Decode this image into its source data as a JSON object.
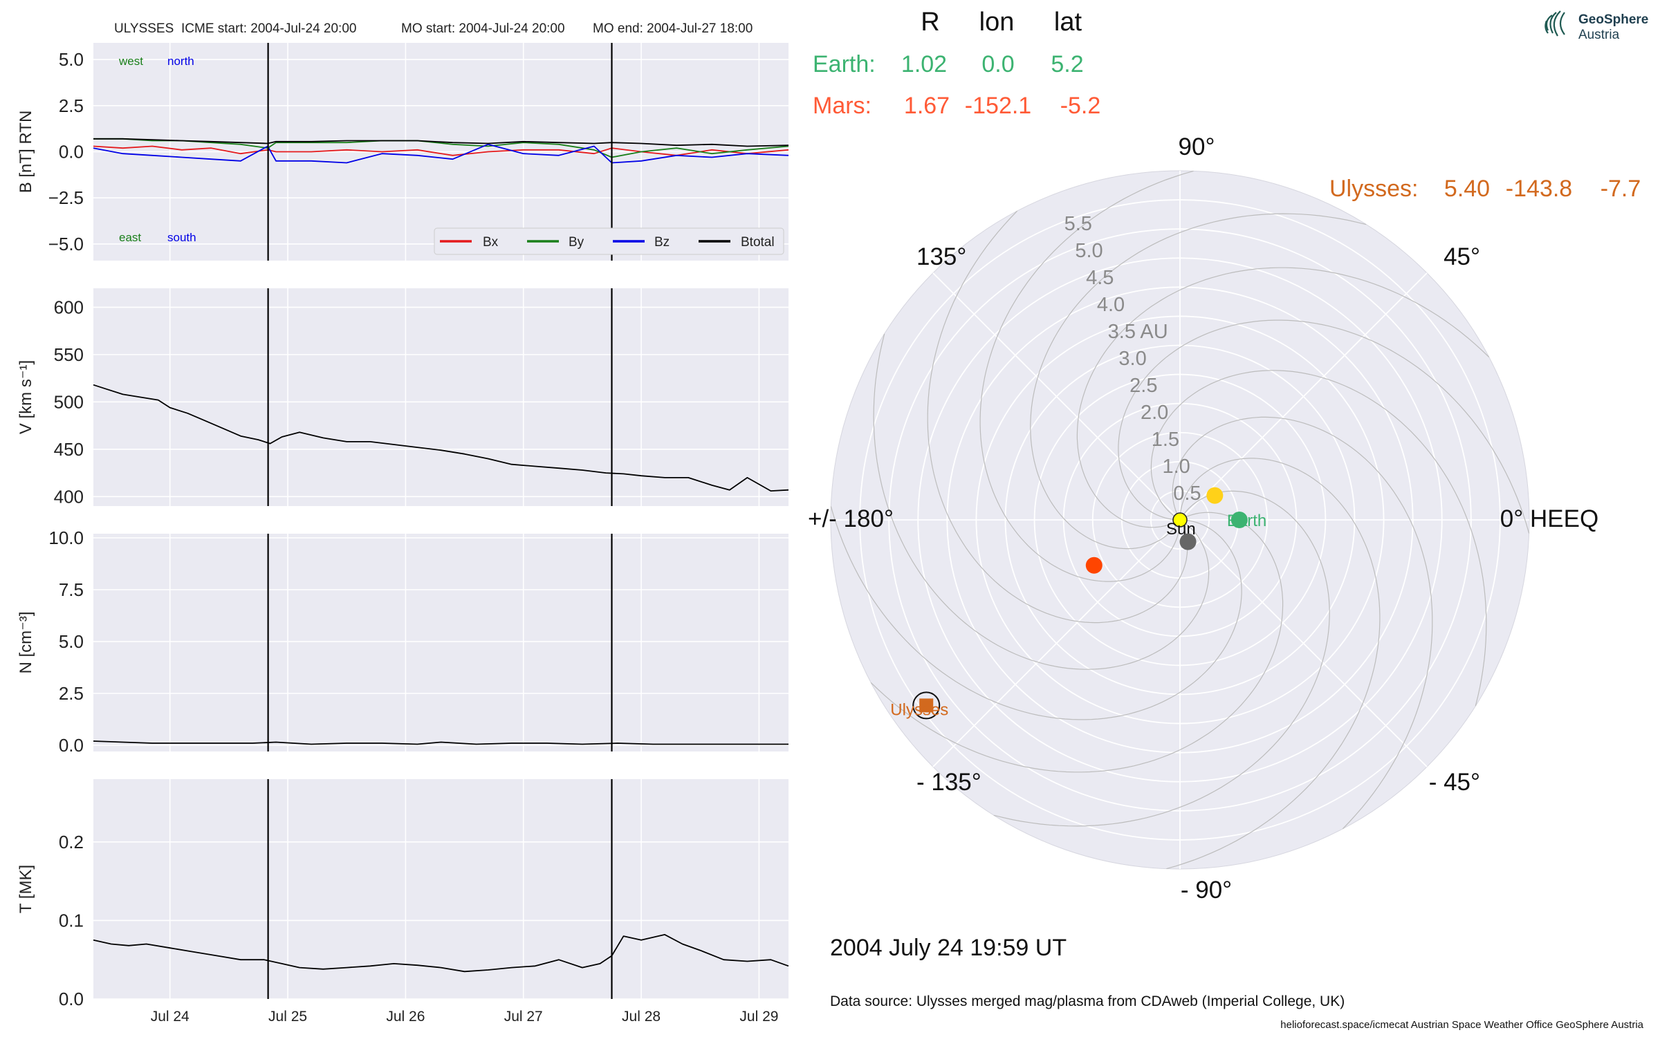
{
  "header": {
    "spacecraft": "ULYSSES",
    "icme_start": "ICME start: 2004-Jul-24 20:00",
    "mo_start": "MO start: 2004-Jul-24 20:00",
    "mo_end": "MO end: 2004-Jul-27 18:00"
  },
  "table": {
    "columns": [
      "R",
      "lon",
      "lat"
    ],
    "rows": [
      {
        "name": "Earth:",
        "R": "1.02",
        "lon": "0.0",
        "lat": "5.2",
        "color": "#3cb371"
      },
      {
        "name": "Mars:",
        "R": "1.67",
        "lon": "-152.1",
        "lat": "-5.2",
        "color": "#ff5a36"
      },
      {
        "name": "Ulysses:",
        "R": "5.40",
        "lon": "-143.8",
        "lat": "-7.7",
        "color": "#d2691e"
      }
    ]
  },
  "logo": {
    "line1": "GeoSphere",
    "line2": "Austria"
  },
  "date_label": "2004 July 24  19:59 UT",
  "source": "Data source: Ulysses merged mag/plasma from CDAweb (Imperial College, UK)",
  "footer": "helioforecast.space/icmecat   Austrian Space Weather Office   GeoSphere Austria",
  "colors": {
    "panel_bg": "#eaeaf2",
    "grid": "#ffffff",
    "bx": "#e41a1c",
    "by": "#1a7f1a",
    "bz": "#0000e6",
    "btot": "#000000",
    "earth": "#3cb371",
    "mars": "#ff4500",
    "venus": "#ffd119",
    "mercury": "#666666",
    "sun": "#ffff00",
    "ulysses": "#d2691e"
  },
  "chart_data": [
    {
      "type": "line",
      "panel": "B",
      "ylabel": "B [nT] RTN",
      "ylim": [
        -5.9,
        5.9
      ],
      "yticks": [
        5.0,
        2.5,
        0.0,
        -2.5,
        -5.0
      ],
      "ytick_labels": [
        "5.0",
        "2.5",
        "0.0",
        "−2.5",
        "−5.0"
      ],
      "xlim": [
        23.35,
        29.25
      ],
      "xticks": [
        24,
        25,
        26,
        27,
        28,
        29
      ],
      "xtick_labels": [
        "Jul 24",
        "Jul 25",
        "Jul 26",
        "Jul 27",
        "Jul 28",
        "Jul 29"
      ],
      "vlines": [
        24.833,
        27.75
      ],
      "annotations": {
        "west": "west",
        "north": "north",
        "east": "east",
        "south": "south"
      },
      "legend_position": "lower-right",
      "series": [
        {
          "name": "Bx",
          "color": "#e41a1c",
          "x": [
            23.35,
            23.6,
            23.85,
            24.1,
            24.35,
            24.6,
            24.83,
            24.9,
            25.2,
            25.5,
            25.8,
            26.1,
            26.4,
            26.7,
            27.0,
            27.3,
            27.6,
            27.75,
            28.0,
            28.3,
            28.6,
            28.9,
            29.25
          ],
          "y": [
            0.3,
            0.2,
            0.3,
            0.1,
            0.2,
            -0.1,
            0.1,
            0.0,
            0.0,
            0.1,
            0.0,
            0.1,
            -0.2,
            0.0,
            0.1,
            0.1,
            -0.1,
            0.2,
            0.0,
            -0.2,
            0.1,
            -0.1,
            0.1
          ]
        },
        {
          "name": "By",
          "color": "#1a7f1a",
          "x": [
            23.35,
            23.6,
            23.85,
            24.1,
            24.35,
            24.6,
            24.83,
            24.9,
            25.2,
            25.5,
            25.8,
            26.1,
            26.4,
            26.7,
            27.0,
            27.3,
            27.6,
            27.75,
            28.0,
            28.3,
            28.6,
            28.9,
            29.25
          ],
          "y": [
            0.7,
            0.7,
            0.6,
            0.6,
            0.5,
            0.4,
            0.2,
            0.5,
            0.5,
            0.5,
            0.6,
            0.6,
            0.4,
            0.3,
            0.5,
            0.4,
            0.1,
            -0.3,
            0.0,
            0.2,
            -0.1,
            0.1,
            0.3
          ]
        },
        {
          "name": "Bz",
          "color": "#0000e6",
          "x": [
            23.35,
            23.6,
            23.85,
            24.1,
            24.35,
            24.6,
            24.83,
            24.9,
            25.2,
            25.5,
            25.8,
            26.1,
            26.4,
            26.7,
            27.0,
            27.3,
            27.6,
            27.75,
            28.0,
            28.3,
            28.6,
            28.9,
            29.25
          ],
          "y": [
            0.2,
            -0.1,
            -0.2,
            -0.3,
            -0.4,
            -0.5,
            0.3,
            -0.5,
            -0.5,
            -0.6,
            -0.1,
            -0.2,
            -0.4,
            0.4,
            -0.1,
            -0.2,
            0.3,
            -0.6,
            -0.5,
            -0.2,
            -0.3,
            -0.1,
            -0.2
          ]
        },
        {
          "name": "Btotal",
          "color": "#000000",
          "x": [
            23.35,
            23.6,
            23.85,
            24.1,
            24.35,
            24.6,
            24.83,
            24.9,
            25.2,
            25.5,
            25.8,
            26.1,
            26.4,
            26.7,
            27.0,
            27.3,
            27.6,
            27.75,
            28.0,
            28.3,
            28.6,
            28.9,
            29.25
          ],
          "y": [
            0.7,
            0.7,
            0.65,
            0.6,
            0.55,
            0.5,
            0.45,
            0.55,
            0.55,
            0.6,
            0.6,
            0.6,
            0.5,
            0.45,
            0.55,
            0.5,
            0.45,
            0.5,
            0.45,
            0.35,
            0.4,
            0.3,
            0.35
          ]
        }
      ]
    },
    {
      "type": "line",
      "panel": "V",
      "ylabel": "V [km s⁻¹]",
      "ylim": [
        390,
        620
      ],
      "yticks": [
        600,
        550,
        500,
        450,
        400
      ],
      "ytick_labels": [
        "600",
        "550",
        "500",
        "450",
        "400"
      ],
      "xlim": [
        23.35,
        29.25
      ],
      "vlines": [
        24.833,
        27.75
      ],
      "series": [
        {
          "name": "V",
          "color": "#000000",
          "x": [
            23.35,
            23.45,
            23.6,
            23.75,
            23.9,
            24.0,
            24.15,
            24.3,
            24.45,
            24.6,
            24.75,
            24.85,
            24.95,
            25.1,
            25.3,
            25.5,
            25.7,
            25.9,
            26.1,
            26.3,
            26.5,
            26.7,
            26.9,
            27.1,
            27.3,
            27.5,
            27.7,
            27.85,
            28.0,
            28.2,
            28.4,
            28.6,
            28.75,
            28.9,
            29.0,
            29.1,
            29.25
          ],
          "y": [
            518,
            514,
            508,
            505,
            502,
            494,
            488,
            480,
            472,
            464,
            460,
            456,
            463,
            468,
            462,
            458,
            458,
            455,
            452,
            449,
            445,
            440,
            434,
            432,
            430,
            428,
            425,
            424,
            422,
            420,
            420,
            412,
            407,
            420,
            413,
            406,
            407
          ]
        }
      ]
    },
    {
      "type": "line",
      "panel": "N",
      "ylabel": "N [cm⁻³]",
      "ylim": [
        -0.3,
        10.2
      ],
      "yticks": [
        10.0,
        7.5,
        5.0,
        2.5,
        0.0
      ],
      "ytick_labels": [
        "10.0",
        "7.5",
        "5.0",
        "2.5",
        "0.0"
      ],
      "xlim": [
        23.35,
        29.25
      ],
      "vlines": [
        24.833,
        27.75
      ],
      "series": [
        {
          "name": "N",
          "color": "#000000",
          "x": [
            23.35,
            23.6,
            23.85,
            24.1,
            24.4,
            24.7,
            24.9,
            25.2,
            25.5,
            25.8,
            26.1,
            26.3,
            26.6,
            26.9,
            27.2,
            27.5,
            27.8,
            28.1,
            28.4,
            28.7,
            29.0,
            29.25
          ],
          "y": [
            0.2,
            0.15,
            0.1,
            0.1,
            0.1,
            0.1,
            0.15,
            0.05,
            0.1,
            0.1,
            0.05,
            0.15,
            0.05,
            0.1,
            0.1,
            0.05,
            0.1,
            0.05,
            0.05,
            0.05,
            0.05,
            0.05
          ]
        }
      ]
    },
    {
      "type": "line",
      "panel": "T",
      "ylabel": "T [MK]",
      "ylim": [
        0.0,
        0.28
      ],
      "yticks": [
        0.2,
        0.1,
        0.0
      ],
      "ytick_labels": [
        "0.2",
        "0.1",
        "0.0"
      ],
      "xlim": [
        23.35,
        29.25
      ],
      "xticks": [
        24,
        25,
        26,
        27,
        28,
        29
      ],
      "xtick_labels": [
        "Jul 24",
        "Jul 25",
        "Jul 26",
        "Jul 27",
        "Jul 28",
        "Jul 29"
      ],
      "vlines": [
        24.833,
        27.75
      ],
      "series": [
        {
          "name": "T",
          "color": "#000000",
          "x": [
            23.35,
            23.5,
            23.65,
            23.8,
            24.0,
            24.2,
            24.4,
            24.6,
            24.8,
            24.95,
            25.1,
            25.3,
            25.5,
            25.7,
            25.9,
            26.1,
            26.3,
            26.5,
            26.7,
            26.9,
            27.1,
            27.3,
            27.5,
            27.65,
            27.75,
            27.85,
            28.0,
            28.2,
            28.35,
            28.5,
            28.7,
            28.9,
            29.1,
            29.25
          ],
          "y": [
            0.075,
            0.07,
            0.068,
            0.07,
            0.065,
            0.06,
            0.055,
            0.05,
            0.05,
            0.045,
            0.04,
            0.038,
            0.04,
            0.042,
            0.045,
            0.043,
            0.04,
            0.035,
            0.037,
            0.04,
            0.042,
            0.05,
            0.04,
            0.045,
            0.055,
            0.08,
            0.075,
            0.082,
            0.07,
            0.062,
            0.05,
            0.048,
            0.05,
            0.042
          ]
        }
      ]
    },
    {
      "type": "scatter",
      "panel": "polar",
      "coordinate_system": "polar",
      "angle_labels": [
        {
          "deg": 0,
          "label": "0° HEEQ"
        },
        {
          "deg": 45,
          "label": "45°"
        },
        {
          "deg": 90,
          "label": "90°"
        },
        {
          "deg": 135,
          "label": "135°"
        },
        {
          "deg": 180,
          "label": "+/- 180°"
        },
        {
          "deg": 225,
          "label": "- 135°"
        },
        {
          "deg": 270,
          "label": "- 90°"
        },
        {
          "deg": 315,
          "label": "- 45°"
        }
      ],
      "radial_ticks": [
        0.5,
        1.0,
        1.5,
        2.0,
        2.5,
        3.0,
        3.5,
        4.0,
        4.5,
        5.0,
        5.5
      ],
      "radial_tick_labels": [
        "0.5",
        "1.0",
        "1.5",
        "2.0",
        "2.5",
        "3.0",
        "3.5 AU",
        "4.0",
        "4.5",
        "5.0",
        "5.5"
      ],
      "rlim": [
        0,
        6.0
      ],
      "bodies": [
        {
          "name": "Sun",
          "label": "Sun",
          "r": 0.0,
          "lon": 0.0,
          "color": "#ffff00"
        },
        {
          "name": "Earth",
          "label": "Earth",
          "r": 1.02,
          "lon": 0.0,
          "color": "#3cb371"
        },
        {
          "name": "Mars",
          "label": "",
          "r": 1.67,
          "lon": -152.1,
          "color": "#ff4500"
        },
        {
          "name": "Venus",
          "label": "",
          "r": 0.73,
          "lon": 35.0,
          "color": "#ffd119"
        },
        {
          "name": "Mercury",
          "label": "",
          "r": 0.4,
          "lon": -70.0,
          "color": "#666666"
        },
        {
          "name": "Ulysses",
          "label": "Ulysses",
          "r": 5.4,
          "lon": -143.8,
          "color": "#d2691e"
        }
      ]
    }
  ]
}
